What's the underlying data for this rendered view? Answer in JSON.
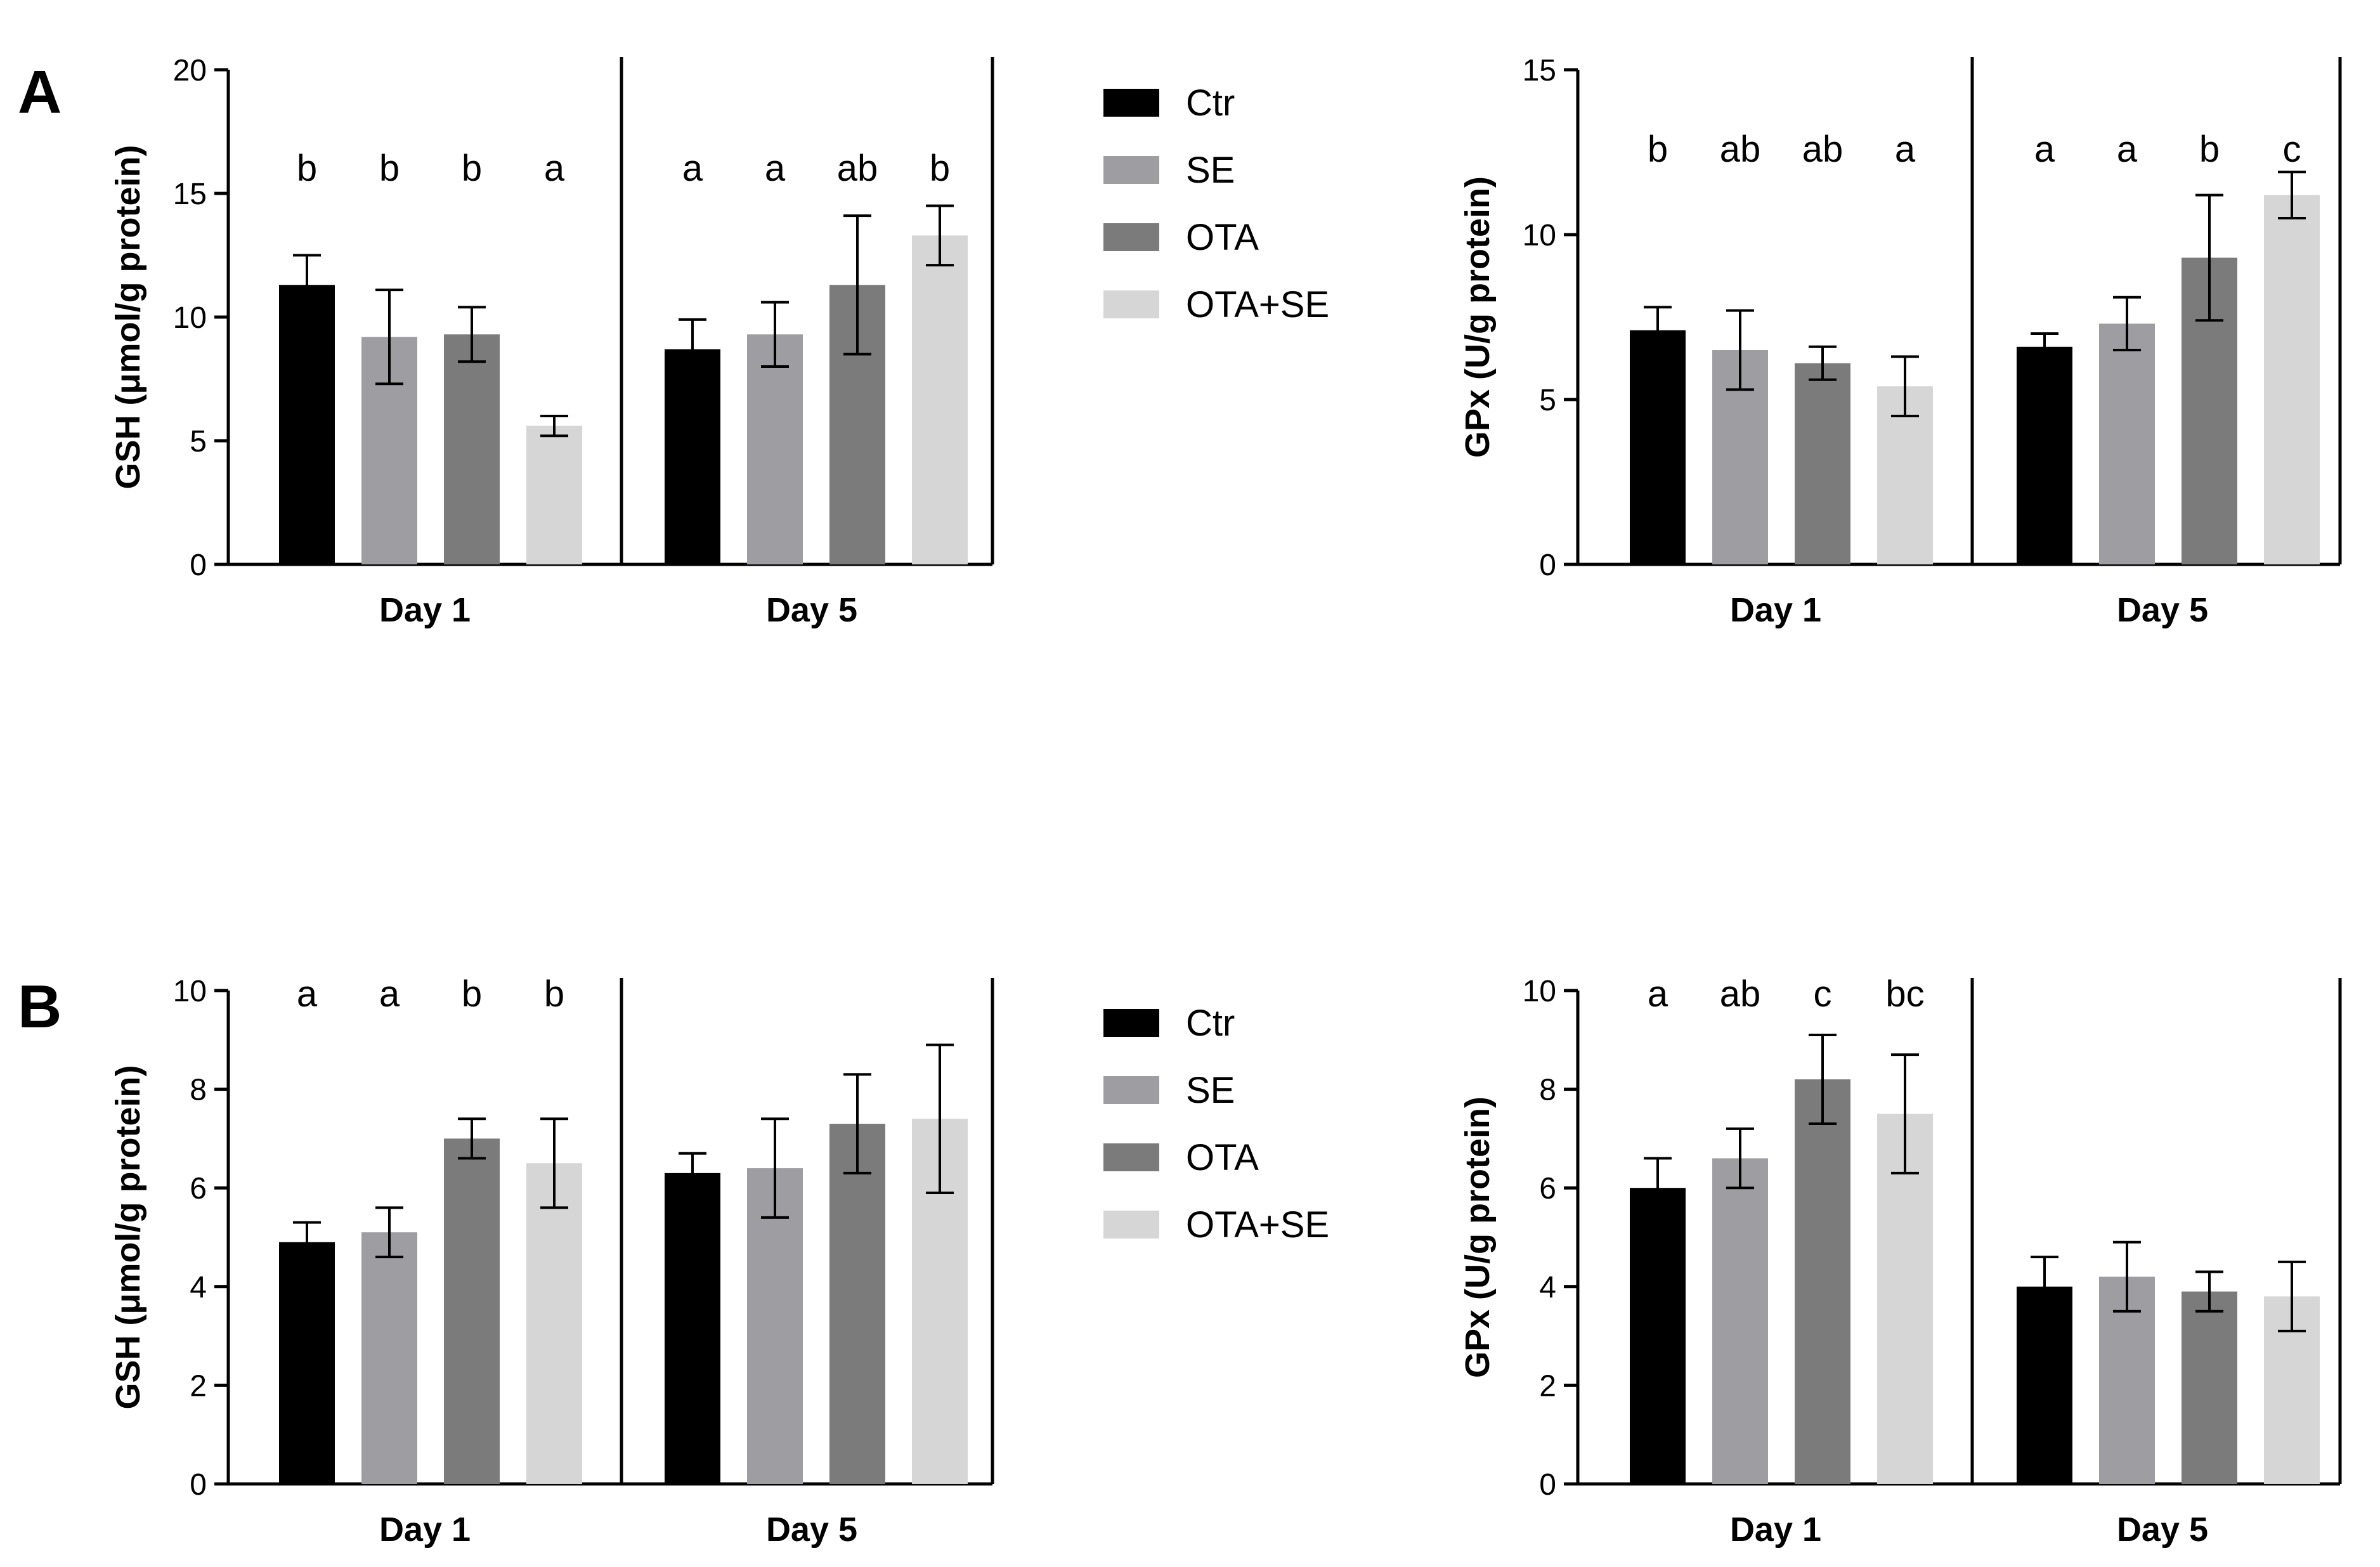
{
  "figure": {
    "panels": [
      {
        "label": "A"
      },
      {
        "label": "B"
      }
    ],
    "legend": [
      {
        "name": "Ctr",
        "color": "#000000"
      },
      {
        "name": "SE",
        "color": "#9e9ea2"
      },
      {
        "name": "OTA",
        "color": "#7b7b7b"
      },
      {
        "name": "OTA+SE",
        "color": "#d6d6d6"
      }
    ]
  },
  "chart_data": [
    {
      "id": "A-GSH",
      "panel": "A",
      "type": "bar",
      "ylabel": "GSH (μmol/g protein)",
      "ylim": [
        0,
        20
      ],
      "yticks": [
        "0",
        "5",
        "10",
        "15",
        "20"
      ],
      "categories": [
        "Day 1",
        "Day 5"
      ],
      "series": [
        {
          "name": "Ctr",
          "values": [
            11.3,
            8.7
          ],
          "errors": [
            1.2,
            1.2
          ]
        },
        {
          "name": "SE",
          "values": [
            9.2,
            9.3
          ],
          "errors": [
            1.9,
            1.3
          ]
        },
        {
          "name": "OTA",
          "values": [
            9.3,
            11.3
          ],
          "errors": [
            1.1,
            2.8
          ]
        },
        {
          "name": "OTA+SE",
          "values": [
            5.6,
            13.3
          ],
          "errors": [
            0.4,
            1.2
          ]
        }
      ],
      "letters": [
        [
          "b",
          "b",
          "b",
          "a"
        ],
        [
          "a",
          "a",
          "ab",
          "b"
        ]
      ]
    },
    {
      "id": "A-GPx",
      "panel": "A",
      "type": "bar",
      "ylabel": "GPx (U/g protein)",
      "ylim": [
        0,
        15
      ],
      "yticks": [
        "0",
        "5",
        "10",
        "15"
      ],
      "categories": [
        "Day 1",
        "Day 5"
      ],
      "series": [
        {
          "name": "Ctr",
          "values": [
            7.1,
            6.6
          ],
          "errors": [
            0.7,
            0.4
          ]
        },
        {
          "name": "SE",
          "values": [
            6.5,
            7.3
          ],
          "errors": [
            1.2,
            0.8
          ]
        },
        {
          "name": "OTA",
          "values": [
            6.1,
            9.3
          ],
          "errors": [
            0.5,
            1.9
          ]
        },
        {
          "name": "OTA+SE",
          "values": [
            5.4,
            11.2
          ],
          "errors": [
            0.9,
            0.7
          ]
        }
      ],
      "letters": [
        [
          "b",
          "ab",
          "ab",
          "a"
        ],
        [
          "a",
          "a",
          "b",
          "c"
        ]
      ]
    },
    {
      "id": "B-GSH",
      "panel": "B",
      "type": "bar",
      "ylabel": "GSH (μmol/g protein)",
      "ylim": [
        0,
        10
      ],
      "yticks": [
        "0",
        "2",
        "4",
        "6",
        "8",
        "10"
      ],
      "categories": [
        "Day 1",
        "Day 5"
      ],
      "series": [
        {
          "name": "Ctr",
          "values": [
            4.9,
            6.3
          ],
          "errors": [
            0.4,
            0.4
          ]
        },
        {
          "name": "SE",
          "values": [
            5.1,
            6.4
          ],
          "errors": [
            0.5,
            1.0
          ]
        },
        {
          "name": "OTA",
          "values": [
            7.0,
            7.3
          ],
          "errors": [
            0.4,
            1.0
          ]
        },
        {
          "name": "OTA+SE",
          "values": [
            6.5,
            7.4
          ],
          "errors": [
            0.9,
            1.5
          ]
        }
      ],
      "letters": [
        [
          "a",
          "a",
          "b",
          "b"
        ],
        []
      ]
    },
    {
      "id": "B-GPx",
      "panel": "B",
      "type": "bar",
      "ylabel": "GPx (U/g protein)",
      "ylim": [
        0,
        10
      ],
      "yticks": [
        "0",
        "2",
        "4",
        "6",
        "8",
        "10"
      ],
      "categories": [
        "Day 1",
        "Day 5"
      ],
      "series": [
        {
          "name": "Ctr",
          "values": [
            6.0,
            4.0
          ],
          "errors": [
            0.6,
            0.6
          ]
        },
        {
          "name": "SE",
          "values": [
            6.6,
            4.2
          ],
          "errors": [
            0.6,
            0.7
          ]
        },
        {
          "name": "OTA",
          "values": [
            8.2,
            3.9
          ],
          "errors": [
            0.9,
            0.4
          ]
        },
        {
          "name": "OTA+SE",
          "values": [
            7.5,
            3.8
          ],
          "errors": [
            1.2,
            0.7
          ]
        }
      ],
      "letters": [
        [
          "a",
          "ab",
          "c",
          "bc"
        ],
        []
      ]
    }
  ]
}
